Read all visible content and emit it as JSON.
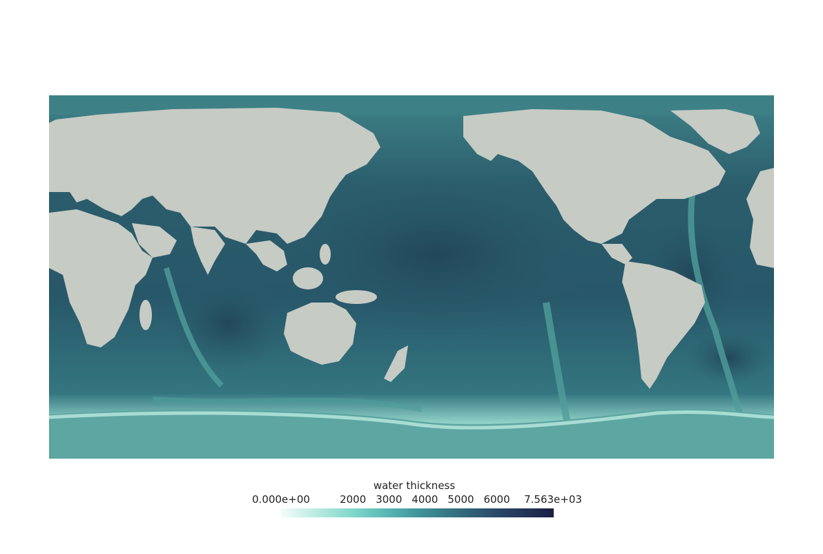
{
  "map": {
    "projection": "equirectangular",
    "center_longitude": 180,
    "variable": "water thickness",
    "colors": {
      "land": "#c6cbc4",
      "ocean_deep": "#214a5b",
      "ocean_mid": "#2f6d76",
      "ocean_shallow": "#4d9a98",
      "shelf": "#8ccfc3",
      "antarctic_margin": "#9fd4cc"
    }
  },
  "colorbar": {
    "title": "water thickness",
    "min": 0,
    "max": 7563,
    "ticks": [
      {
        "value": 0,
        "label": "0.000e+00"
      },
      {
        "value": 2000,
        "label": "2000"
      },
      {
        "value": 3000,
        "label": "3000"
      },
      {
        "value": 4000,
        "label": "4000"
      },
      {
        "value": 5000,
        "label": "5000"
      },
      {
        "value": 6000,
        "label": "6000"
      },
      {
        "value": 7563,
        "label": "7.563e+03"
      }
    ],
    "colormap_stops": [
      {
        "value": 0,
        "color": "#f4fcf9"
      },
      {
        "value": 2000,
        "color": "#7fd8cb"
      },
      {
        "value": 3000,
        "color": "#56b4b3"
      },
      {
        "value": 4000,
        "color": "#3d8d96"
      },
      {
        "value": 5000,
        "color": "#336a7c"
      },
      {
        "value": 6000,
        "color": "#2b4969"
      },
      {
        "value": 7563,
        "color": "#1a1f45"
      }
    ]
  }
}
